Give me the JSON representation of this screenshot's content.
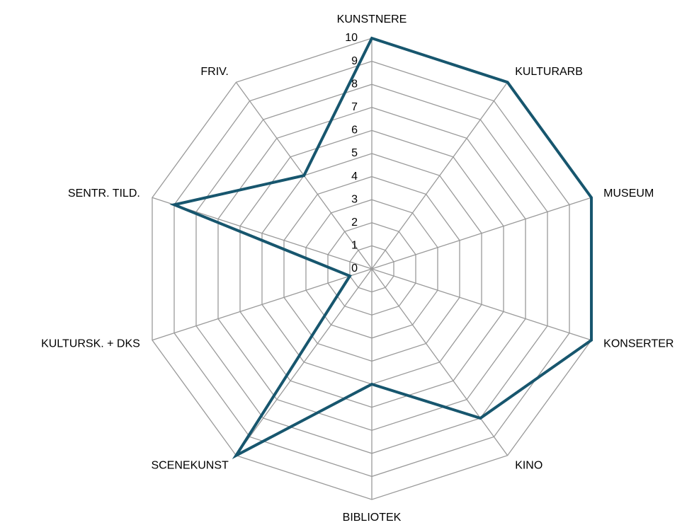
{
  "chart_data": {
    "type": "radar",
    "categories": [
      "KUNSTNERE",
      "KULTURARB",
      "MUSEUM",
      "KONSERTER",
      "KINO",
      "BIBLIOTEK",
      "SCENEKUNST",
      "KULTURSK. + DKS",
      "SENTR. TILD.",
      "FRIV."
    ],
    "values": [
      10,
      10,
      10,
      10,
      8,
      5,
      10,
      1,
      9,
      5
    ],
    "color": "#17566e",
    "ylim": [
      0,
      10
    ],
    "yticks": [
      0,
      1,
      2,
      3,
      4,
      5,
      6,
      7,
      8,
      9,
      10
    ],
    "grid": true
  }
}
